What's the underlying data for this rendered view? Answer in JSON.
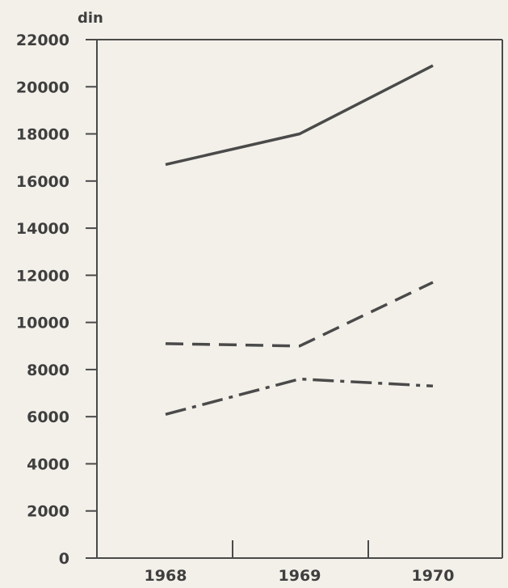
{
  "chart_data": {
    "type": "line",
    "title": "",
    "ylabel": "din",
    "xlabel": "",
    "categories": [
      "1968",
      "1969",
      "1970"
    ],
    "ylim": [
      0,
      22000
    ],
    "yticks": [
      "0",
      "2000",
      "4000",
      "6000",
      "8000",
      "10000",
      "12000",
      "14000",
      "16000",
      "18000",
      "20000",
      "22000"
    ],
    "series": [
      {
        "style": "solid",
        "values": [
          16700,
          18000,
          20900
        ]
      },
      {
        "style": "dashed",
        "values": [
          9100,
          9000,
          11700
        ]
      },
      {
        "style": "dash-dot",
        "values": [
          6100,
          7600,
          7300
        ]
      }
    ],
    "grid": false,
    "legend": "none",
    "colors": {
      "ink": "#4a4a4a",
      "background": "#f3f0e9"
    }
  }
}
